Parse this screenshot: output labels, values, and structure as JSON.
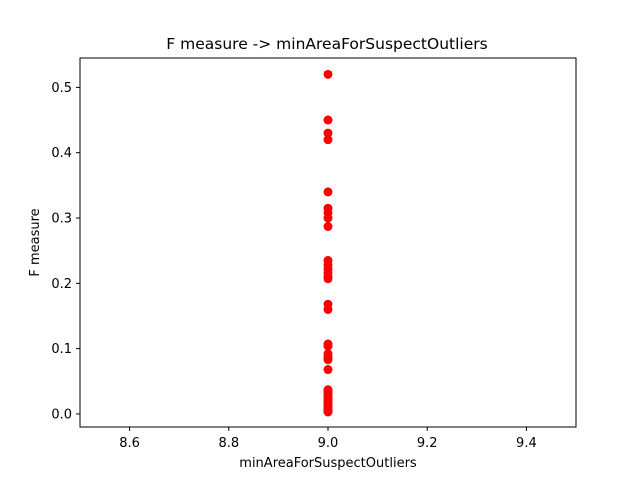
{
  "chart_data": {
    "type": "scatter",
    "title": "F measure -> minAreaForSuspectOutliers",
    "xlabel": "minAreaForSuspectOutliers",
    "ylabel": "F measure",
    "xlim": [
      8.5,
      9.5
    ],
    "ylim": [
      -0.02,
      0.545
    ],
    "xticks": [
      8.6,
      8.8,
      9.0,
      9.2,
      9.4
    ],
    "xtick_labels": [
      "8.6",
      "8.8",
      "9.0",
      "9.2",
      "9.4"
    ],
    "yticks": [
      0.0,
      0.1,
      0.2,
      0.3,
      0.4,
      0.5
    ],
    "ytick_labels": [
      "0.0",
      "0.1",
      "0.2",
      "0.3",
      "0.4",
      "0.5"
    ],
    "grid": false,
    "marker_color": "#ff0000",
    "series": [
      {
        "x": [
          9.0,
          9.0,
          9.0,
          9.0,
          9.0,
          9.0,
          9.0,
          9.0,
          9.0,
          9.0,
          9.0,
          9.0,
          9.0,
          9.0,
          9.0,
          9.0,
          9.0,
          9.0,
          9.0,
          9.0,
          9.0,
          9.0,
          9.0,
          9.0,
          9.0,
          9.0,
          9.0,
          9.0,
          9.0,
          9.0,
          9.0,
          9.0,
          9.0,
          9.0,
          9.0,
          9.0,
          9.0,
          9.0
        ],
        "y": [
          0.52,
          0.45,
          0.43,
          0.42,
          0.34,
          0.315,
          0.308,
          0.3,
          0.287,
          0.235,
          0.228,
          0.222,
          0.216,
          0.21,
          0.207,
          0.168,
          0.16,
          0.107,
          0.104,
          0.092,
          0.087,
          0.083,
          0.068,
          0.037,
          0.035,
          0.032,
          0.028,
          0.025,
          0.022,
          0.018,
          0.015,
          0.012,
          0.01,
          0.008,
          0.006,
          0.005,
          0.004,
          0.003
        ]
      }
    ]
  }
}
